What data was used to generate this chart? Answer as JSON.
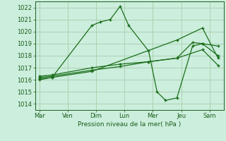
{
  "background_color": "#cceedd",
  "grid_color": "#aaccaa",
  "line_color": "#1a6e1a",
  "xlabel": "Pression niveau de la mer( hPa )",
  "ylim": [
    1013.5,
    1022.5
  ],
  "yticks": [
    1014,
    1015,
    1016,
    1017,
    1018,
    1019,
    1020,
    1021,
    1022
  ],
  "xtick_labels": [
    "Mar",
    "Ven",
    "Dim",
    "Lun",
    "Mer",
    "Jeu",
    "Sam"
  ],
  "xtick_positions": [
    0,
    1,
    2,
    3,
    4,
    5,
    6
  ],
  "xlim": [
    -0.15,
    6.5
  ],
  "lines": [
    {
      "x": [
        0.0,
        0.45,
        1.85,
        2.15,
        2.5,
        2.85,
        3.15,
        3.85,
        4.15,
        4.45,
        4.85,
        5.4,
        5.75,
        6.3
      ],
      "y": [
        1016.0,
        1016.2,
        1020.5,
        1020.8,
        1021.0,
        1022.1,
        1020.5,
        1018.4,
        1015.0,
        1014.3,
        1014.5,
        1018.8,
        1019.0,
        1018.0
      ]
    },
    {
      "x": [
        0.0,
        0.45,
        1.85,
        4.85,
        5.75,
        6.3
      ],
      "y": [
        1016.1,
        1016.2,
        1016.7,
        1019.3,
        1020.3,
        1017.8
      ]
    },
    {
      "x": [
        0.0,
        0.45,
        1.85,
        2.85,
        3.85,
        4.85,
        5.4,
        5.75,
        6.3
      ],
      "y": [
        1016.2,
        1016.3,
        1016.8,
        1017.1,
        1017.5,
        1017.8,
        1019.1,
        1019.0,
        1018.8
      ]
    },
    {
      "x": [
        0.0,
        0.45,
        1.85,
        2.85,
        3.85,
        4.85,
        5.75,
        6.3
      ],
      "y": [
        1016.3,
        1016.4,
        1017.0,
        1017.3,
        1017.5,
        1017.8,
        1018.5,
        1017.2
      ]
    }
  ]
}
